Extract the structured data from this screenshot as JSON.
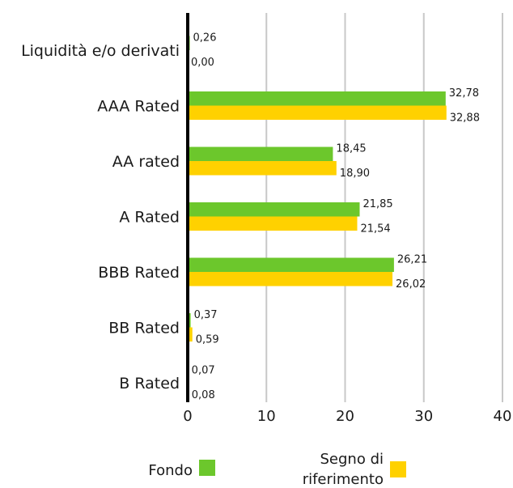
{
  "chart_data": {
    "type": "bar",
    "orientation": "horizontal",
    "categories": [
      "Liquidità e/o derivati",
      "AAA Rated",
      "AA rated",
      "A Rated",
      "BBB Rated",
      "BB Rated",
      "B Rated"
    ],
    "series": [
      {
        "name": "Fondo",
        "color": "#6cc72c",
        "values": [
          0.26,
          32.78,
          18.45,
          21.85,
          26.21,
          0.37,
          0.07
        ],
        "labels": [
          "0,26",
          "32,78",
          "18,45",
          "21,85",
          "26,21",
          "0,37",
          "0,07"
        ]
      },
      {
        "name": "Segno di riferimento",
        "color": "#ffd100",
        "values": [
          0.0,
          32.88,
          18.9,
          21.54,
          26.02,
          0.59,
          0.08
        ],
        "labels": [
          "0,00",
          "32,88",
          "18,90",
          "21,54",
          "26,02",
          "0,59",
          "0,08"
        ]
      }
    ],
    "xlim": [
      0,
      40
    ],
    "x_ticks": [
      "0",
      "10",
      "20",
      "30",
      "40"
    ],
    "x_tick_values": [
      0,
      10,
      20,
      30,
      40
    ],
    "grid": "vertical",
    "legend_position": "bottom",
    "legend_lines": [
      [
        "Fondo"
      ],
      [
        "Segno di",
        "riferimento"
      ]
    ]
  }
}
